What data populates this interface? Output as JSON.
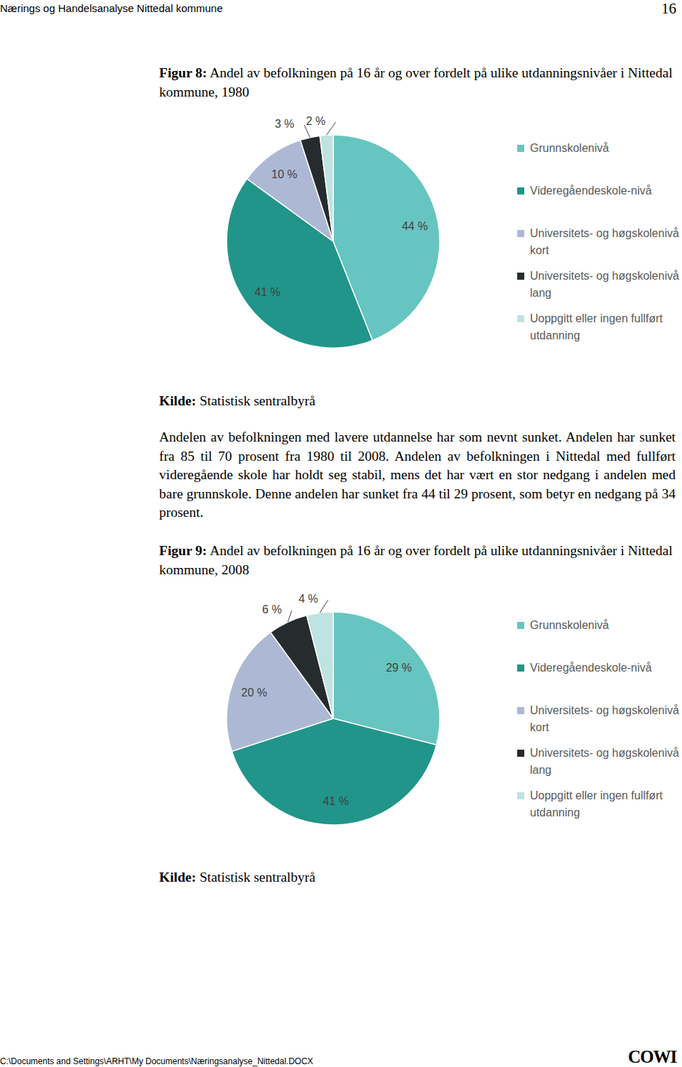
{
  "header": {
    "title": "Nærings og Handelsanalyse Nittedal kommune",
    "page": 16
  },
  "chart_data": [
    {
      "type": "pie",
      "title": "Figur 8: Andel av befolkningen på 16 år og over fordelt på ulike utdanningsnivåer i Nittedal kommune, 1980",
      "categories": [
        "Grunnskolenivå",
        "Videregåendeskole-nivå",
        "Universitets- og høgskolenivå kort",
        "Universitets- og høgskolenivå lang",
        "Uoppgitt eller ingen fullført utdanning"
      ],
      "values": [
        44,
        41,
        10,
        3,
        2
      ],
      "value_labels": [
        "44 %",
        "41 %",
        "10 %",
        "3 %",
        "2 %"
      ],
      "colors": [
        "#66c5c0",
        "#21958a",
        "#adb9d4",
        "#262b2d",
        "#bfe3e0"
      ],
      "data_labels": true,
      "legend": "right",
      "source": "Kilde: Statistisk sentralbyrå"
    },
    {
      "type": "pie",
      "title": "Figur 9: Andel av befolkningen på 16 år og over fordelt på ulike utdanningsnivåer i Nittedal kommune, 2008",
      "categories": [
        "Grunnskolenivå",
        "Videregåendeskole-nivå",
        "Universitets- og høgskolenivå kort",
        "Universitets- og høgskolenivå lang",
        "Uoppgitt eller ingen fullført utdanning"
      ],
      "values": [
        29,
        41,
        20,
        6,
        4
      ],
      "value_labels": [
        "29 %",
        "41 %",
        "20 %",
        "6 %",
        "4 %"
      ],
      "colors": [
        "#66c5c0",
        "#21958a",
        "#adb9d4",
        "#262b2d",
        "#bfe3e0"
      ],
      "data_labels": true,
      "legend": "right",
      "source": "Kilde: Statistisk sentralbyrå"
    }
  ],
  "body": {
    "paragraph": "Andelen av befolkningen med lavere utdannelse har som nevnt sunket. Andelen har sunket fra 85 til 70 prosent fra 1980 til 2008. Andelen av befolkningen i Nittedal med fullført videregående skole har holdt seg stabil, mens det har vært en stor nedgang i andelen med bare grunnskole. Denne andelen har sunket fra 44 til 29 prosent, som betyr en nedgang på 34 prosent."
  },
  "footer": {
    "path": "C:\\Documents and Settings\\ARHT\\My Documents\\Næringsanalyse_Nittedal.DOCX",
    "logo": "COWI"
  }
}
